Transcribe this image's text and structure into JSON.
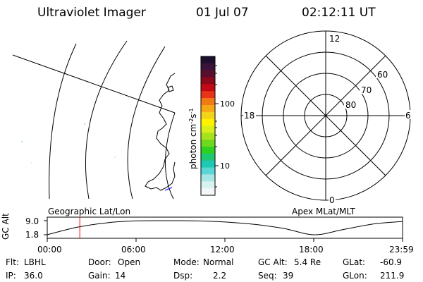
{
  "header": {
    "instrument": "Ultraviolet Imager",
    "date": "01 Jul 07",
    "time": "02:12:11 UT"
  },
  "colorbar": {
    "label_base": "photon cm",
    "label_exp1": "-2",
    "label_mid": "s",
    "label_exp2": "-1",
    "tick_labels": [
      "100",
      "10"
    ],
    "scale": "log",
    "colors": [
      "#1e0f2e",
      "#3a1438",
      "#5a0d2d",
      "#8a0a1a",
      "#c20a14",
      "#e8331a",
      "#f07a14",
      "#f5a814",
      "#f5d21a",
      "#fff200",
      "#d8ef1a",
      "#a8e21c",
      "#6fd81e",
      "#2fd024",
      "#1ec870",
      "#1ec8b4",
      "#5ad6d6",
      "#a8e6e6",
      "#d8f2f2",
      "#f2f8f8"
    ]
  },
  "polar": {
    "mlt_labels": {
      "top": "12",
      "bottom": "0",
      "left": "18",
      "right": "6"
    },
    "mlat_labels": [
      "60",
      "70",
      "80"
    ]
  },
  "timeline": {
    "left_title": "Geographic Lat/Lon",
    "right_title": "Apex MLat/MLT",
    "ylabel": "GC Alt",
    "ytick_top": "9.0",
    "ytick_bottom": "1.8",
    "xticks": [
      "00:00",
      "06:00",
      "12:00",
      "18:00",
      "23:59"
    ],
    "marker_color": "#ff0000"
  },
  "chart_data": {
    "type": "line",
    "x": [
      "00:00",
      "02:00",
      "04:00",
      "06:00",
      "08:00",
      "10:00",
      "12:00",
      "14:00",
      "16:00",
      "18:00",
      "20:00",
      "22:00",
      "23:59"
    ],
    "values": [
      1.8,
      5.6,
      7.9,
      8.9,
      9.0,
      8.9,
      8.3,
      7.1,
      5.0,
      1.8,
      4.5,
      7.3,
      8.6
    ],
    "ylabel": "GC Alt",
    "ylim": [
      1.8,
      9.0
    ],
    "xlim": [
      "00:00",
      "23:59"
    ],
    "current_time_marker": "02:12"
  },
  "footer": {
    "row1": {
      "flt_label": "Flt:",
      "flt_value": "LBHL",
      "door_label": "Door:",
      "door_value": "Open",
      "mode_label": "Mode:",
      "mode_value": "Normal",
      "gcalt_label": "GC Alt:",
      "gcalt_value": "5.4 Re",
      "glat_label": "GLat:",
      "glat_value": "-60.9"
    },
    "row2": {
      "ip_label": "IP:",
      "ip_value": "36.0",
      "gain_label": "Gain:",
      "gain_value": "14",
      "dsp_label": "Dsp:",
      "dsp_value": "2.2",
      "seq_label": "Seq:",
      "seq_value": "39",
      "glon_label": "GLon:",
      "glon_value": "211.9"
    }
  }
}
